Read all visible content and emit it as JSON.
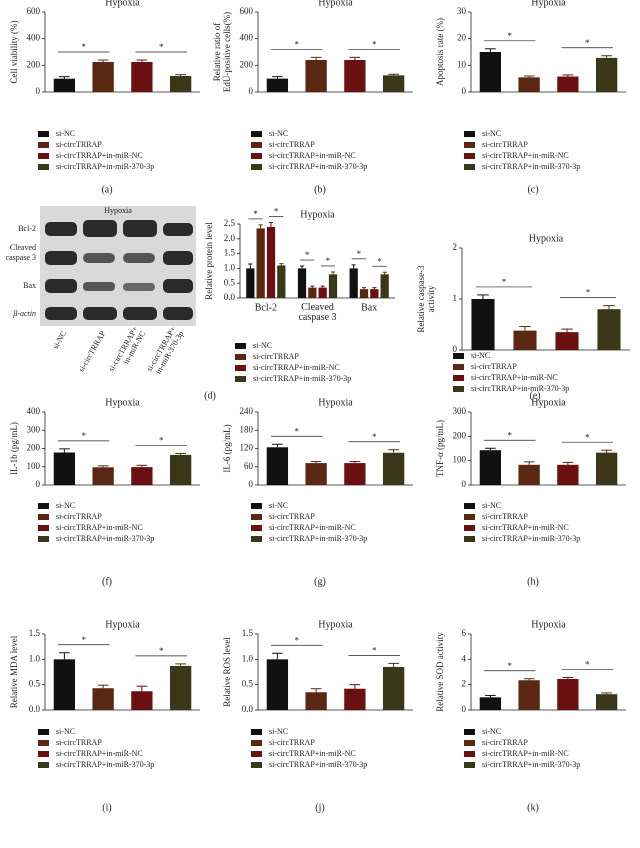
{
  "chart_data": [
    {
      "type": "bar",
      "title": "Hypoxia",
      "panel_label": "(a)",
      "ylabel": "Cell viability (%)",
      "ylim": [
        0,
        600
      ],
      "yticks": [
        0,
        200,
        400,
        600
      ],
      "annotations": [
        "*",
        "*"
      ],
      "series": [
        {
          "name": "si-NC",
          "color": "#111111",
          "values": [
            100
          ],
          "errors": [
            15
          ]
        },
        {
          "name": "si-circTRRAP",
          "color": "#5a2812",
          "values": [
            225
          ],
          "errors": [
            15
          ]
        },
        {
          "name": "si-circTRRAP+in-miR-NC",
          "color": "#6a1010",
          "values": [
            225
          ],
          "errors": [
            15
          ]
        },
        {
          "name": "si-circTRRAP+in-miR-370-3p",
          "color": "#3a3818",
          "values": [
            120
          ],
          "errors": [
            10
          ]
        }
      ]
    },
    {
      "type": "bar",
      "title": "Hypoxia",
      "panel_label": "(b)",
      "ylabel": "Relative ratio of EdU-positive cells(%)",
      "ylim": [
        0,
        600
      ],
      "yticks": [
        0,
        200,
        400,
        600
      ],
      "annotations": [
        "*",
        "*"
      ],
      "series": [
        {
          "name": "si-NC",
          "color": "#111111",
          "values": [
            100
          ],
          "errors": [
            15
          ]
        },
        {
          "name": "si-circTRRAP",
          "color": "#5a2812",
          "values": [
            240
          ],
          "errors": [
            20
          ]
        },
        {
          "name": "si-circTRRAP+in-miR-NC",
          "color": "#6a1010",
          "values": [
            240
          ],
          "errors": [
            20
          ]
        },
        {
          "name": "si-circTRRAP+in-miR-370-3p",
          "color": "#3a3818",
          "values": [
            125
          ],
          "errors": [
            8
          ]
        }
      ]
    },
    {
      "type": "bar",
      "title": "Hypoxia",
      "panel_label": "(c)",
      "ylabel": "Apoptosis rate (%)",
      "ylim": [
        0,
        30
      ],
      "yticks": [
        0,
        10,
        20,
        30
      ],
      "annotations": [
        "*",
        "*"
      ],
      "series": [
        {
          "name": "si-NC",
          "color": "#111111",
          "values": [
            15
          ],
          "errors": [
            1.2
          ]
        },
        {
          "name": "si-circTRRAP",
          "color": "#5a2812",
          "values": [
            5.5
          ],
          "errors": [
            0.5
          ]
        },
        {
          "name": "si-circTRRAP+in-miR-NC",
          "color": "#6a1010",
          "values": [
            5.8
          ],
          "errors": [
            0.6
          ]
        },
        {
          "name": "si-circTRRAP+in-miR-370-3p",
          "color": "#3a3818",
          "values": [
            12.8
          ],
          "errors": [
            0.8
          ]
        }
      ]
    },
    {
      "type": "grouped-bar",
      "title": "Hypoxia",
      "panel_label": "(d)",
      "ylabel": "Relative protein level",
      "ylim": [
        0,
        2.5
      ],
      "yticks": [
        {
          "value": 0,
          "label": "0.0"
        },
        {
          "value": 0.5,
          "label": "0.5"
        },
        {
          "value": 1,
          "label": "1.0"
        },
        {
          "value": 1.5,
          "label": "1.5"
        },
        {
          "value": 2,
          "label": "2.0"
        },
        {
          "value": 2.5,
          "label": "2.5"
        }
      ],
      "categories": [
        "Bcl-2",
        "Cleaved caspase 3",
        "Bax"
      ],
      "annotations": [
        "*",
        "*",
        "*",
        "*",
        "*",
        "*"
      ],
      "series": [
        {
          "name": "si-NC",
          "color": "#111111",
          "values": [
            1.0,
            1.0,
            1.0
          ],
          "errors": [
            0.15,
            0.08,
            0.12
          ]
        },
        {
          "name": "si-circTRRAP",
          "color": "#5a2812",
          "values": [
            2.35,
            0.35,
            0.3
          ],
          "errors": [
            0.12,
            0.05,
            0.05
          ]
        },
        {
          "name": "si-circTRRAP+in-miR-NC",
          "color": "#6a1010",
          "values": [
            2.4,
            0.35,
            0.3
          ],
          "errors": [
            0.15,
            0.05,
            0.05
          ]
        },
        {
          "name": "si-circTRRAP+in-miR-370-3p",
          "color": "#3a3818",
          "values": [
            1.1,
            0.8,
            0.8
          ],
          "errors": [
            0.06,
            0.08,
            0.07
          ]
        }
      ]
    },
    {
      "type": "bar",
      "title": "Hypoxia",
      "panel_label": "(e)",
      "ylabel": "Relative caspase-3 activity",
      "ylim": [
        0,
        2
      ],
      "yticks": [
        0,
        1,
        2
      ],
      "annotations": [
        "*",
        "*"
      ],
      "series": [
        {
          "name": "si-NC",
          "color": "#111111",
          "values": [
            1.0
          ],
          "errors": [
            0.08
          ]
        },
        {
          "name": "si-circTRRAP",
          "color": "#5a2812",
          "values": [
            0.38
          ],
          "errors": [
            0.08
          ]
        },
        {
          "name": "si-circTRRAP+in-miR-NC",
          "color": "#6a1010",
          "values": [
            0.35
          ],
          "errors": [
            0.06
          ]
        },
        {
          "name": "si-circTRRAP+in-miR-370-3p",
          "color": "#3a3818",
          "values": [
            0.8
          ],
          "errors": [
            0.07
          ]
        }
      ]
    },
    {
      "type": "bar",
      "title": "Hypoxia",
      "panel_label": "(f)",
      "ylabel": "IL-1b (pg/mL)",
      "ylim": [
        0,
        400
      ],
      "yticks": [
        0,
        100,
        200,
        300,
        400
      ],
      "annotations": [
        "*",
        "*"
      ],
      "series": [
        {
          "name": "si-NC",
          "color": "#111111",
          "values": [
            178
          ],
          "errors": [
            20
          ]
        },
        {
          "name": "si-circTRRAP",
          "color": "#5a2812",
          "values": [
            97
          ],
          "errors": [
            8
          ]
        },
        {
          "name": "si-circTRRAP+in-miR-NC",
          "color": "#6a1010",
          "values": [
            98
          ],
          "errors": [
            10
          ]
        },
        {
          "name": "si-circTRRAP+in-miR-370-3p",
          "color": "#3a3818",
          "values": [
            165
          ],
          "errors": [
            8
          ]
        }
      ]
    },
    {
      "type": "bar",
      "title": "Hypoxia",
      "panel_label": "(g)",
      "ylabel": "IL-6 (pg/mL)",
      "ylim": [
        0,
        240
      ],
      "yticks": [
        0,
        60,
        120,
        180,
        240
      ],
      "annotations": [
        "*",
        "*"
      ],
      "series": [
        {
          "name": "si-NC",
          "color": "#111111",
          "values": [
            124
          ],
          "errors": [
            10
          ]
        },
        {
          "name": "si-circTRRAP",
          "color": "#5a2812",
          "values": [
            72
          ],
          "errors": [
            5
          ]
        },
        {
          "name": "si-circTRRAP+in-miR-NC",
          "color": "#6a1010",
          "values": [
            72
          ],
          "errors": [
            5
          ]
        },
        {
          "name": "si-circTRRAP+in-miR-370-3p",
          "color": "#3a3818",
          "values": [
            106
          ],
          "errors": [
            10
          ]
        }
      ]
    },
    {
      "type": "bar",
      "title": "Hypoxia",
      "panel_label": "(h)",
      "ylabel": "TNF-α (pg/mL)",
      "ylim": [
        0,
        300
      ],
      "yticks": [
        0,
        100,
        200,
        300
      ],
      "annotations": [
        "*",
        "*"
      ],
      "series": [
        {
          "name": "si-NC",
          "color": "#111111",
          "values": [
            143
          ],
          "errors": [
            8
          ]
        },
        {
          "name": "si-circTRRAP",
          "color": "#5a2812",
          "values": [
            83
          ],
          "errors": [
            12
          ]
        },
        {
          "name": "si-circTRRAP+in-miR-NC",
          "color": "#6a1010",
          "values": [
            83
          ],
          "errors": [
            10
          ]
        },
        {
          "name": "si-circTRRAP+in-miR-370-3p",
          "color": "#3a3818",
          "values": [
            133
          ],
          "errors": [
            10
          ]
        }
      ]
    },
    {
      "type": "bar",
      "title": "Hypoxia",
      "panel_label": "(i)",
      "ylabel": "Relative MDA level",
      "ylim": [
        0,
        1.5
      ],
      "yticks": [
        {
          "value": 0,
          "label": "0.0"
        },
        {
          "value": 0.5,
          "label": "0.5"
        },
        {
          "value": 1,
          "label": "1.0"
        },
        {
          "value": 1.5,
          "label": "1.5"
        }
      ],
      "annotations": [
        "*",
        "*"
      ],
      "series": [
        {
          "name": "si-NC",
          "color": "#111111",
          "values": [
            1.0
          ],
          "errors": [
            0.13
          ]
        },
        {
          "name": "si-circTRRAP",
          "color": "#5a2812",
          "values": [
            0.43
          ],
          "errors": [
            0.06
          ]
        },
        {
          "name": "si-circTRRAP+in-miR-NC",
          "color": "#6a1010",
          "values": [
            0.37
          ],
          "errors": [
            0.1
          ]
        },
        {
          "name": "si-circTRRAP+in-miR-370-3p",
          "color": "#3a3818",
          "values": [
            0.87
          ],
          "errors": [
            0.04
          ]
        }
      ]
    },
    {
      "type": "bar",
      "title": "Hypoxia",
      "panel_label": "(j)",
      "ylabel": "Relative ROS level",
      "ylim": [
        0,
        1.5
      ],
      "yticks": [
        {
          "value": 0,
          "label": "0.0"
        },
        {
          "value": 0.5,
          "label": "0.5"
        },
        {
          "value": 1,
          "label": "1.0"
        },
        {
          "value": 1.5,
          "label": "1.5"
        }
      ],
      "annotations": [
        "*",
        "*"
      ],
      "series": [
        {
          "name": "si-NC",
          "color": "#111111",
          "values": [
            1.0
          ],
          "errors": [
            0.12
          ]
        },
        {
          "name": "si-circTRRAP",
          "color": "#5a2812",
          "values": [
            0.35
          ],
          "errors": [
            0.07
          ]
        },
        {
          "name": "si-circTRRAP+in-miR-NC",
          "color": "#6a1010",
          "values": [
            0.42
          ],
          "errors": [
            0.08
          ]
        },
        {
          "name": "si-circTRRAP+in-miR-370-3p",
          "color": "#3a3818",
          "values": [
            0.85
          ],
          "errors": [
            0.07
          ]
        }
      ]
    },
    {
      "type": "bar",
      "title": "Hypoxia",
      "panel_label": "(k)",
      "ylabel": "Relative SOD activity",
      "ylim": [
        0,
        6
      ],
      "yticks": [
        0,
        2,
        4,
        6
      ],
      "annotations": [
        "*",
        "*"
      ],
      "series": [
        {
          "name": "si-NC",
          "color": "#111111",
          "values": [
            1.0
          ],
          "errors": [
            0.15
          ]
        },
        {
          "name": "si-circTRRAP",
          "color": "#5a2812",
          "values": [
            2.35
          ],
          "errors": [
            0.12
          ]
        },
        {
          "name": "si-circTRRAP+in-miR-NC",
          "color": "#6a1010",
          "values": [
            2.45
          ],
          "errors": [
            0.12
          ]
        },
        {
          "name": "si-circTRRAP+in-miR-370-3p",
          "color": "#3a3818",
          "values": [
            1.25
          ],
          "errors": [
            0.1
          ]
        }
      ]
    }
  ],
  "blot": {
    "title": "Hypoxia",
    "rows": [
      "Bcl-2",
      "Cleaved caspase 3",
      "Bax",
      "β-actin"
    ],
    "lanes": [
      "si-NC",
      "si-circTRRAP",
      "si-circTRRAP+ in-miR-NC",
      "si-circTRRAP+ in-miR-370-3p"
    ]
  }
}
